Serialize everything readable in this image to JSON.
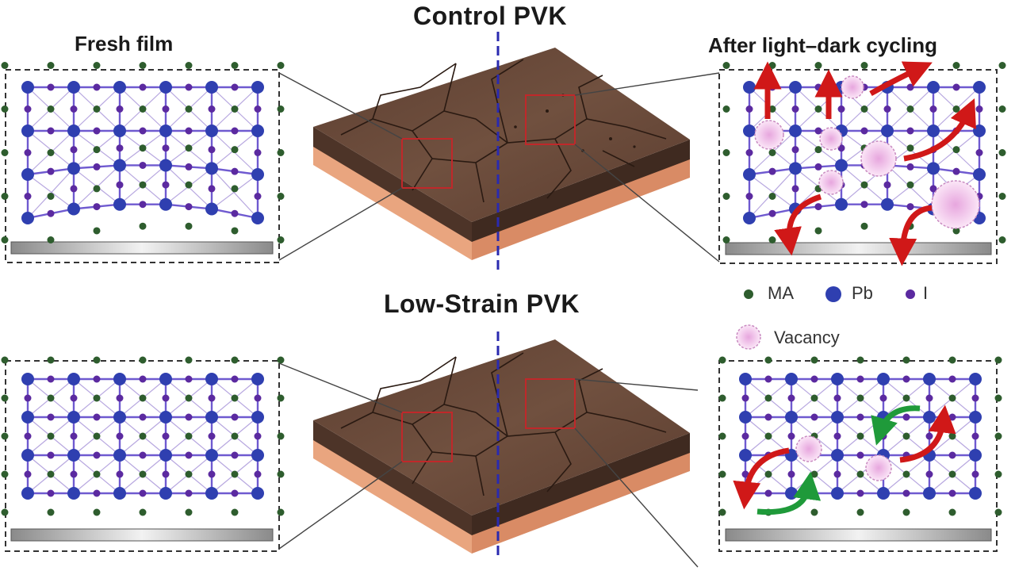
{
  "titles": {
    "control": "Control PVK",
    "low_strain": "Low-Strain PVK"
  },
  "panel_labels": {
    "fresh": "Fresh film",
    "after": "After light–dark cycling"
  },
  "legend": {
    "ma": "MA",
    "pb": "Pb",
    "i": "I",
    "vacancy": "Vacancy"
  },
  "colors": {
    "ma": "#2e5d2e",
    "pb": "#2f3fb0",
    "i": "#5b2aa0",
    "vacancy": "#f0c8ea",
    "film_top": "#6b4a3a",
    "film_side": "#4d3428",
    "substrate": "#e9a57f",
    "arrow_red": "#d01818",
    "arrow_green": "#1f9a3a",
    "crack_box": "#c0282a",
    "divider": "#2a2ab0"
  }
}
